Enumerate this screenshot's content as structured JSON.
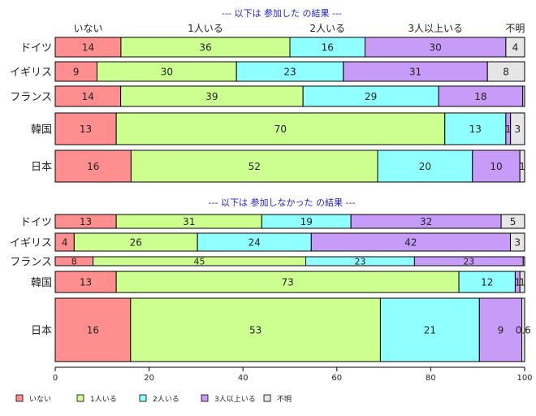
{
  "chart_data": {
    "type": "bar",
    "orientation": "horizontal",
    "stacked": true,
    "xlim": [
      0,
      100
    ],
    "x_ticks": [
      "0",
      "20",
      "40",
      "60",
      "80",
      "100"
    ],
    "legend_position": "bottom",
    "colors": [
      "#ff8f8f",
      "#ccff8f",
      "#8fffff",
      "#c69cf8",
      "#e6e6e6"
    ],
    "legend": [
      "いない",
      "1人いる",
      "2人いる",
      "3人以上いる",
      "不明"
    ],
    "column_labels": [
      "いない",
      "1人いる",
      "2人いる",
      "3人以上いる",
      "不明"
    ],
    "panels": [
      {
        "title": "--- 以下は 参加した の結果 ---",
        "categories": [
          "ドイツ",
          "イギリス",
          "フランス",
          "韓国",
          "日本"
        ],
        "values": [
          [
            14,
            36,
            16,
            30,
            4
          ],
          [
            9,
            30,
            23,
            31,
            8
          ],
          [
            14,
            39,
            29,
            18,
            0.4
          ],
          [
            13,
            70,
            13,
            1,
            3
          ],
          [
            16,
            52,
            20,
            10,
            1
          ]
        ]
      },
      {
        "title": "--- 以下は 参加しなかった の結果 ---",
        "categories": [
          "ドイツ",
          "イギリス",
          "フランス",
          "韓国",
          "日本"
        ],
        "values": [
          [
            13,
            31,
            19,
            32,
            5
          ],
          [
            4,
            26,
            24,
            42,
            3
          ],
          [
            8,
            45,
            23,
            23,
            0.3
          ],
          [
            13,
            73,
            12,
            1,
            1
          ],
          [
            16,
            53,
            21,
            9,
            0.6
          ]
        ]
      }
    ]
  }
}
